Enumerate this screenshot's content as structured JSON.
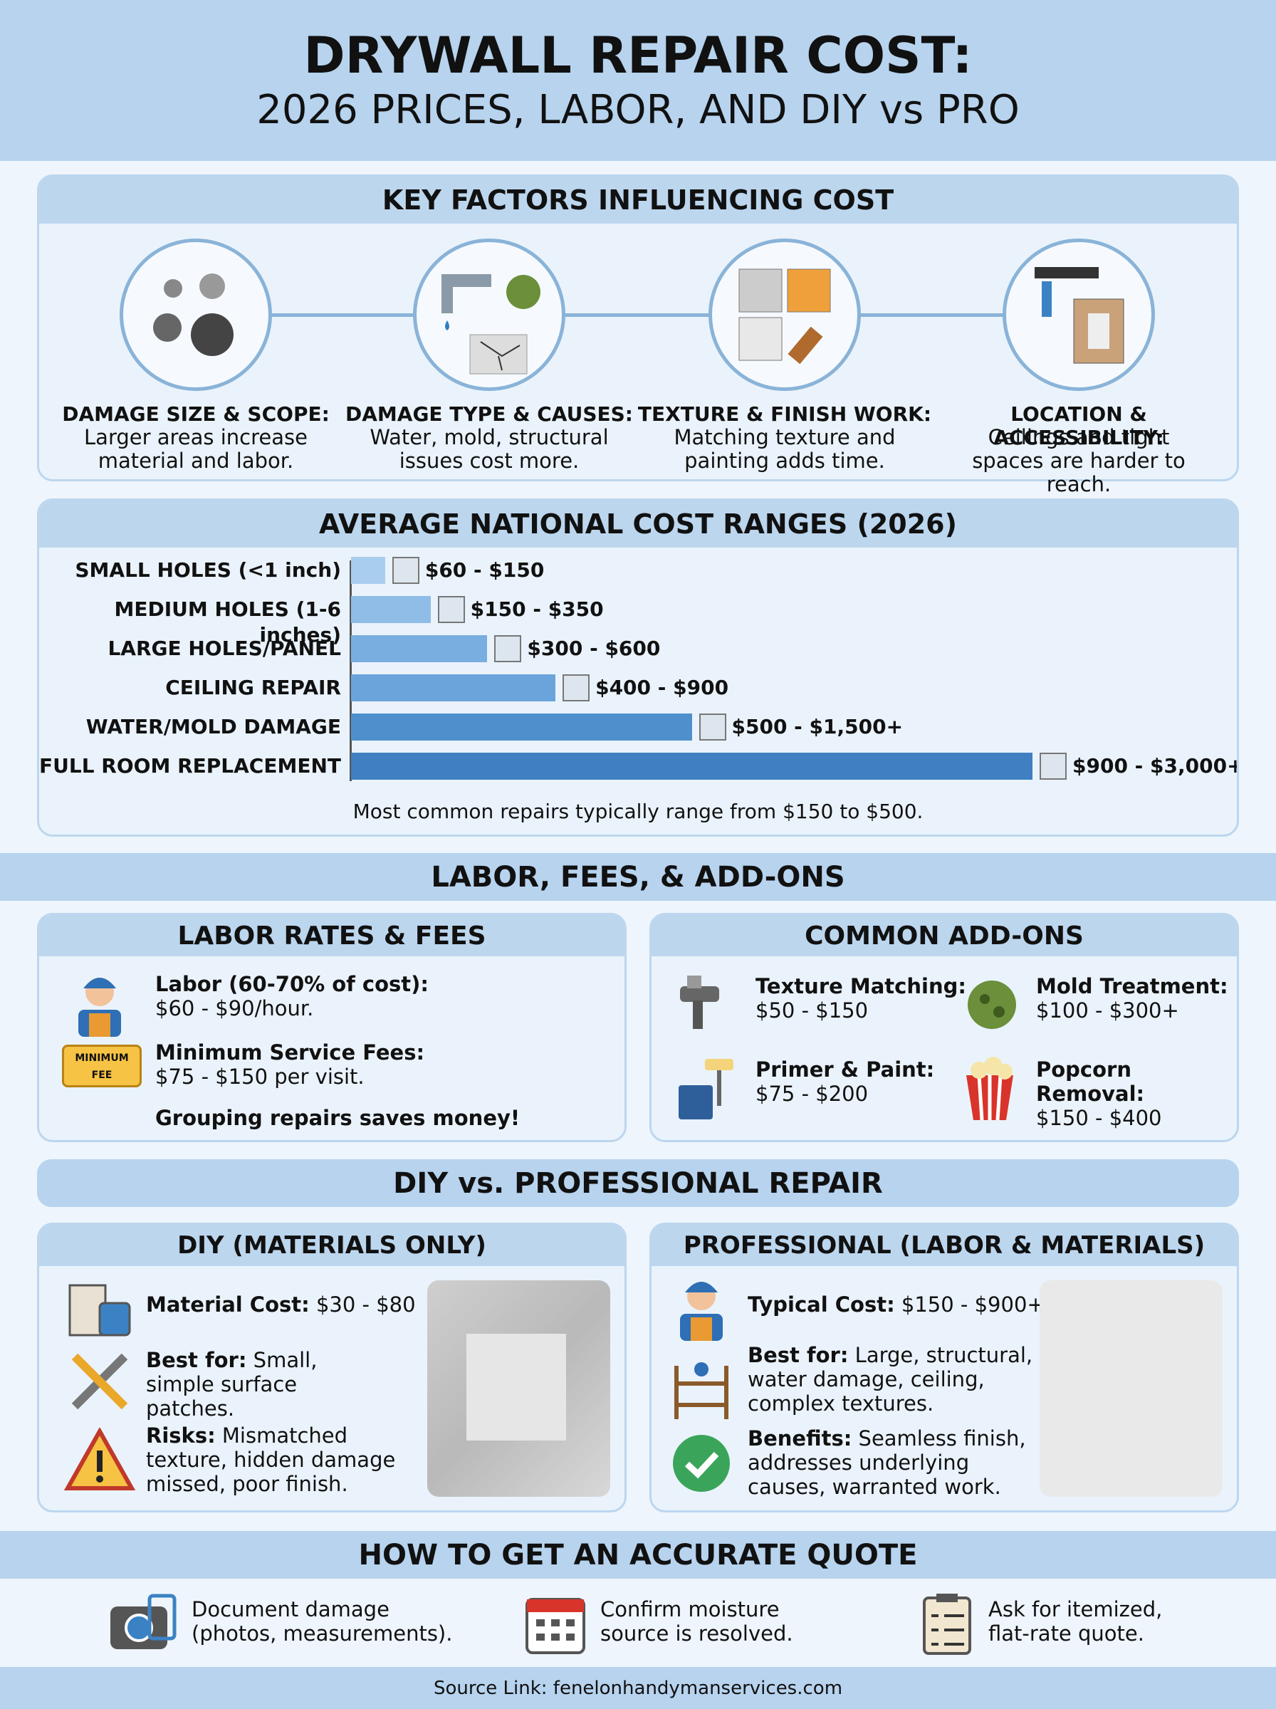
{
  "header": {
    "title": "DRYWALL REPAIR COST:",
    "subtitle": "2026 PRICES, LABOR, AND DIY vs PRO"
  },
  "key_factors": {
    "title": "KEY FACTORS INFLUENCING COST",
    "items": [
      {
        "heading": "DAMAGE SIZE & SCOPE:",
        "text": "Larger areas increase material and labor."
      },
      {
        "heading": "DAMAGE TYPE & CAUSES:",
        "text": "Water, mold, structural issues cost more."
      },
      {
        "heading": "TEXTURE & FINISH WORK:",
        "text": "Matching texture and painting adds time."
      },
      {
        "heading": "LOCATION & ACCESSIBILITY:",
        "text": "Ceilings and tight spaces are harder to reach."
      }
    ]
  },
  "chart_data": {
    "type": "bar",
    "title": "AVERAGE NATIONAL COST RANGES (2026)",
    "categories": [
      "SMALL HOLES (<1 inch)",
      "MEDIUM HOLES (1-6 inches)",
      "LARGE HOLES/PANEL",
      "CEILING REPAIR",
      "WATER/MOLD DAMAGE",
      "FULL ROOM REPLACEMENT"
    ],
    "values": [
      150,
      350,
      600,
      900,
      1500,
      3000
    ],
    "value_labels": [
      "$60 - $150",
      "$150 - $350",
      "$300 - $600",
      "$400 - $900",
      "$500 - $1,500+",
      "$900 - $3,000+"
    ],
    "colors": [
      "#a9cdee",
      "#8fbde8",
      "#79afe0",
      "#6aa4db",
      "#4f8fcc",
      "#3f7fc2"
    ],
    "note": "Most common repairs typically range from $150 to $500."
  },
  "labor_section": {
    "title": "LABOR, FEES, & ADD-ONS",
    "labor": {
      "title": "LABOR RATES & FEES",
      "items": [
        {
          "heading": "Labor (60-70% of cost):",
          "text": "$60 - $90/hour."
        },
        {
          "heading": "Minimum Service Fees:",
          "text": "$75 - $150 per visit."
        }
      ],
      "fee_badge": [
        "MINIMUM",
        "FEE"
      ],
      "tip": "Grouping repairs saves money!"
    },
    "addons": {
      "title": "COMMON ADD-ONS",
      "items": [
        {
          "heading": "Texture Matching:",
          "text": "$50 - $150"
        },
        {
          "heading": "Mold Treatment:",
          "text": "$100 - $300+"
        },
        {
          "heading": "Primer & Paint:",
          "text": "$75 - $200"
        },
        {
          "heading": "Popcorn Removal:",
          "text": "$150 - $400"
        }
      ]
    }
  },
  "diy_vs_pro": {
    "title": "DIY vs. PROFESSIONAL REPAIR",
    "diy": {
      "title": "DIY (MATERIALS ONLY)",
      "items": [
        {
          "heading": "Material Cost:",
          "text": "$30 - $80"
        },
        {
          "heading": "Best for:",
          "text": "Small, simple surface patches."
        },
        {
          "heading": "Risks:",
          "text": "Mismatched texture, hidden damage missed, poor finish."
        }
      ]
    },
    "pro": {
      "title": "PROFESSIONAL (LABOR & MATERIALS)",
      "items": [
        {
          "heading": "Typical Cost:",
          "text": "$150 - $900+"
        },
        {
          "heading": "Best for:",
          "text": "Large, structural, water damage, ceiling, complex textures."
        },
        {
          "heading": "Benefits:",
          "text": "Seamless finish, addresses underlying causes, warranted work."
        }
      ]
    }
  },
  "quote": {
    "title": "HOW TO GET AN ACCURATE QUOTE",
    "steps": [
      "Document damage (photos, measurements).",
      "Confirm moisture source is resolved.",
      "Ask for itemized, flat-rate quote."
    ]
  },
  "footer": "Source Link: fenelonhandymanservices.com"
}
